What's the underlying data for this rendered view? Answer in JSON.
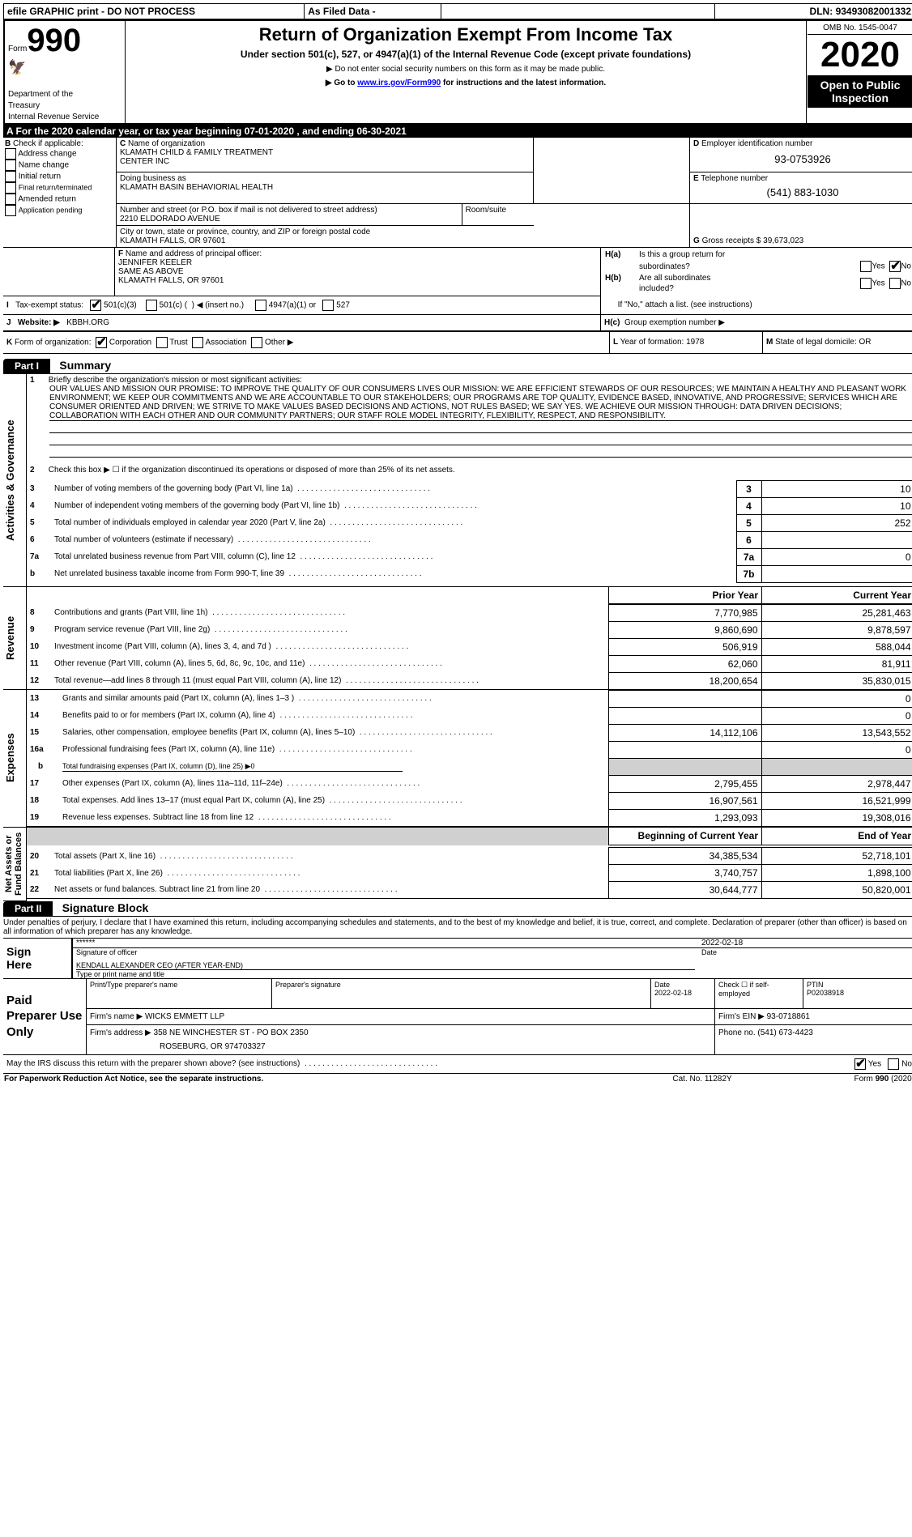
{
  "topbar": {
    "efile": "efile GRAPHIC print - DO NOT PROCESS",
    "asfiled": "As Filed Data -",
    "dln_label": "DLN:",
    "dln": "93493082001332"
  },
  "header": {
    "form_word": "Form",
    "form_num": "990",
    "dept1": "Department of the",
    "dept2": "Treasury",
    "irs": "Internal Revenue Service",
    "title": "Return of Organization Exempt From Income Tax",
    "subtitle": "Under section 501(c), 527, or 4947(a)(1) of the Internal Revenue Code (except private foundations)",
    "note1": "▶ Do not enter social security numbers on this form as it may be made public.",
    "note2a": "▶ Go to ",
    "note2link": "www.irs.gov/Form990",
    "note2b": " for instructions and the latest information.",
    "omb": "OMB No. 1545-0047",
    "year": "2020",
    "open": "Open to Public Inspection"
  },
  "lineA": {
    "prefix": "A   For the 2020 calendar year, or tax year beginning ",
    "begin": "07-01-2020",
    "mid": "   , and ending ",
    "end": "06-30-2021"
  },
  "boxB": {
    "label": "B",
    "check": "Check if applicable:",
    "items": [
      "Address change",
      "Name change",
      "Initial return",
      "Final return/terminated",
      "Amended return",
      "Application pending"
    ]
  },
  "boxC": {
    "c_label": "C",
    "name_lbl": "Name of organization",
    "name1": "KLAMATH CHILD & FAMILY TREATMENT",
    "name2": "CENTER INC",
    "dba_lbl": "Doing business as",
    "dba": "KLAMATH BASIN BEHAVIORIAL HEALTH",
    "addr_lbl": "Number and street (or P.O. box if mail is not delivered to street address)",
    "room_lbl": "Room/suite",
    "addr": "2210 ELDORADO AVENUE",
    "city_lbl": "City or town, state or province, country, and ZIP or foreign postal code",
    "city": "KLAMATH FALLS, OR  97601"
  },
  "boxD": {
    "label": "D",
    "text": "Employer identification number",
    "val": "93-0753926"
  },
  "boxE": {
    "label": "E",
    "text": "Telephone number",
    "val": "(541) 883-1030"
  },
  "boxG": {
    "label": "G",
    "text": "Gross receipts $",
    "val": "39,673,023"
  },
  "boxF": {
    "label": "F",
    "text": "Name and address of principal officer:",
    "l1": "JENNIFER KEELER",
    "l2": "SAME AS ABOVE",
    "l3": "KLAMATH FALLS, OR  97601"
  },
  "boxH": {
    "ha_lbl": "H(a)",
    "ha_txt1": "Is this a group return for",
    "ha_txt2": "subordinates?",
    "hb_lbl": "H(b)",
    "hb_txt1": "Are all subordinates",
    "hb_txt2": "included?",
    "note": "If \"No,\" attach a list. (see instructions)",
    "hc_lbl": "H(c)",
    "hc_txt": "Group exemption number ▶",
    "yes": "Yes",
    "no": "No"
  },
  "lineI": {
    "label": "I",
    "txt": "Tax-exempt status:",
    "o1": "501(c)(3)",
    "o2a": "501(c) (",
    "o2b": ") ◀ (insert no.)",
    "o3": "4947(a)(1) or",
    "o4": "527"
  },
  "lineJ": {
    "label": "J",
    "txt": "Website: ▶",
    "val": "KBBH.ORG"
  },
  "lineK": {
    "label": "K",
    "txt": "Form of organization:",
    "o1": "Corporation",
    "o2": "Trust",
    "o3": "Association",
    "o4": "Other ▶"
  },
  "lineL": {
    "label": "L",
    "txt": "Year of formation:",
    "val": "1978"
  },
  "lineM": {
    "label": "M",
    "txt": "State of legal domicile:",
    "val": "OR"
  },
  "part1": {
    "hdr_num": "Part I",
    "hdr_txt": "Summary",
    "side_ag": "Activities & Governance",
    "side_rev": "Revenue",
    "side_exp": "Expenses",
    "side_na": "Net Assets or Fund Balances",
    "l1_num": "1",
    "l1_txt": "Briefly describe the organization's mission or most significant activities:",
    "l1_val": "OUR VALUES AND MISSION OUR PROMISE: TO IMPROVE THE QUALITY OF OUR CONSUMERS LIVES OUR MISSION: WE ARE EFFICIENT STEWARDS OF OUR RESOURCES; WE MAINTAIN A HEALTHY AND PLEASANT WORK ENVIRONMENT; WE KEEP OUR COMMITMENTS AND WE ARE ACCOUNTABLE TO OUR STAKEHOLDERS; OUR PROGRAMS ARE TOP QUALITY, EVIDENCE BASED, INNOVATIVE, AND PROGRESSIVE; SERVICES WHICH ARE CONSUMER ORIENTED AND DRIVEN; WE STRIVE TO MAKE VALUES BASED DECISIONS AND ACTIONS, NOT RULES BASED; WE SAY YES. WE ACHIEVE OUR MISSION THROUGH: DATA DRIVEN DECISIONS; COLLABORATION WITH EACH OTHER AND OUR COMMUNITY PARTNERS; OUR STAFF ROLE MODEL INTEGRITY, FLEXIBILITY, RESPECT, AND RESPONSIBILITY.",
    "l2_num": "2",
    "l2_txt": "Check this box ▶ ☐ if the organization discontinued its operations or disposed of more than 25% of its net assets.",
    "rows_ag": [
      {
        "n": "3",
        "txt": "Number of voting members of the governing body (Part VI, line 1a)",
        "box": "3",
        "val": "10"
      },
      {
        "n": "4",
        "txt": "Number of independent voting members of the governing body (Part VI, line 1b)",
        "box": "4",
        "val": "10"
      },
      {
        "n": "5",
        "txt": "Total number of individuals employed in calendar year 2020 (Part V, line 2a)",
        "box": "5",
        "val": "252"
      },
      {
        "n": "6",
        "txt": "Total number of volunteers (estimate if necessary)",
        "box": "6",
        "val": ""
      },
      {
        "n": "7a",
        "txt": "Total unrelated business revenue from Part VIII, column (C), line 12",
        "box": "7a",
        "val": "0"
      },
      {
        "n": "b",
        "txt": "Net unrelated business taxable income from Form 990-T, line 39",
        "box": "7b",
        "val": ""
      }
    ],
    "col_prior": "Prior Year",
    "col_curr": "Current Year",
    "rows_rev": [
      {
        "n": "8",
        "txt": "Contributions and grants (Part VIII, line 1h)",
        "py": "7,770,985",
        "cy": "25,281,463"
      },
      {
        "n": "9",
        "txt": "Program service revenue (Part VIII, line 2g)",
        "py": "9,860,690",
        "cy": "9,878,597"
      },
      {
        "n": "10",
        "txt": "Investment income (Part VIII, column (A), lines 3, 4, and 7d )",
        "py": "506,919",
        "cy": "588,044"
      },
      {
        "n": "11",
        "txt": "Other revenue (Part VIII, column (A), lines 5, 6d, 8c, 9c, 10c, and 11e)",
        "py": "62,060",
        "cy": "81,911"
      },
      {
        "n": "12",
        "txt": "Total revenue—add lines 8 through 11 (must equal Part VIII, column (A), line 12)",
        "py": "18,200,654",
        "cy": "35,830,015"
      }
    ],
    "rows_exp": [
      {
        "n": "13",
        "txt": "Grants and similar amounts paid (Part IX, column (A), lines 1–3 )",
        "py": "",
        "cy": "0"
      },
      {
        "n": "14",
        "txt": "Benefits paid to or for members (Part IX, column (A), line 4)",
        "py": "",
        "cy": "0"
      },
      {
        "n": "15",
        "txt": "Salaries, other compensation, employee benefits (Part IX, column (A), lines 5–10)",
        "py": "14,112,106",
        "cy": "13,543,552"
      },
      {
        "n": "16a",
        "txt": "Professional fundraising fees (Part IX, column (A), line 11e)",
        "py": "",
        "cy": "0"
      },
      {
        "n": "b",
        "txt": "Total fundraising expenses (Part IX, column (D), line 25) ▶0",
        "py": null,
        "cy": null,
        "special": true
      },
      {
        "n": "17",
        "txt": "Other expenses (Part IX, column (A), lines 11a–11d, 11f–24e)",
        "py": "2,795,455",
        "cy": "2,978,447"
      },
      {
        "n": "18",
        "txt": "Total expenses. Add lines 13–17 (must equal Part IX, column (A), line 25)",
        "py": "16,907,561",
        "cy": "16,521,999"
      },
      {
        "n": "19",
        "txt": "Revenue less expenses. Subtract line 18 from line 12",
        "py": "1,293,093",
        "cy": "19,308,016"
      }
    ],
    "col_boy": "Beginning of Current Year",
    "col_eoy": "End of Year",
    "rows_na": [
      {
        "n": "20",
        "txt": "Total assets (Part X, line 16)",
        "py": "34,385,534",
        "cy": "52,718,101"
      },
      {
        "n": "21",
        "txt": "Total liabilities (Part X, line 26)",
        "py": "3,740,757",
        "cy": "1,898,100"
      },
      {
        "n": "22",
        "txt": "Net assets or fund balances. Subtract line 21 from line 20",
        "py": "30,644,777",
        "cy": "50,820,001"
      }
    ]
  },
  "part2": {
    "hdr_num": "Part II",
    "hdr_txt": "Signature Block",
    "decl": "Under penalties of perjury, I declare that I have examined this return, including accompanying schedules and statements, and to the best of my knowledge and belief, it is true, correct, and complete. Declaration of preparer (other than officer) is based on all information of which preparer has any knowledge.",
    "sign_here": "Sign Here",
    "stars": "******",
    "sig_officer": "Signature of officer",
    "date_lbl": "Date",
    "sig_date": "2022-02-18",
    "name_title": "KENDALL ALEXANDER CEO (AFTER YEAR-END)",
    "name_title_lbl": "Type or print name and title",
    "paid": "Paid Preparer Use Only",
    "prep_name_lbl": "Print/Type preparer's name",
    "prep_sig_lbl": "Preparer's signature",
    "prep_date_lbl": "Date",
    "prep_date": "2022-02-18",
    "check_self": "Check ☐ if self-employed",
    "ptin_lbl": "PTIN",
    "ptin": "P02038918",
    "firm_name_lbl": "Firm's name      ▶",
    "firm_name": "WICKS EMMETT LLP",
    "firm_ein_lbl": "Firm's EIN ▶",
    "firm_ein": "93-0718861",
    "firm_addr_lbl": "Firm's address ▶",
    "firm_addr1": "358 NE WINCHESTER ST - PO BOX 2350",
    "firm_addr2": "ROSEBURG, OR  974703327",
    "firm_phone_lbl": "Phone no.",
    "firm_phone": "(541) 673-4423",
    "discuss": "May the IRS discuss this return with the preparer shown above? (see instructions)",
    "discuss_yes": "Yes",
    "discuss_no": "No"
  },
  "footer": {
    "pra": "For Paperwork Reduction Act Notice, see the separate instructions.",
    "cat": "Cat. No. 11282Y",
    "form": "Form 990 (2020)"
  }
}
